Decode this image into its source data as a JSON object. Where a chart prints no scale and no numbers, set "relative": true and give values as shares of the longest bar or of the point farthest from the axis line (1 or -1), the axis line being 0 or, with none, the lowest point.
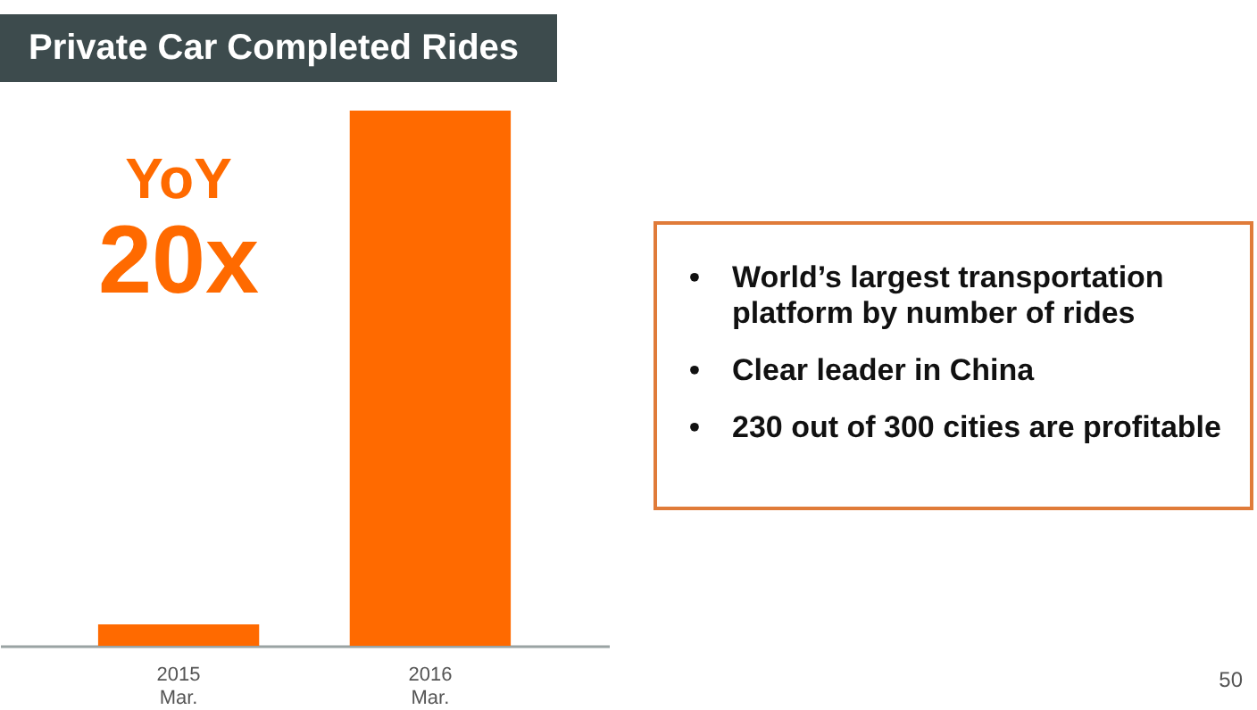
{
  "chart_data": {
    "type": "bar",
    "title": "Private Car Completed Rides",
    "categories": [
      "2015\nMar.",
      "2016\nMar."
    ],
    "values": [
      0.04,
      1
    ],
    "color": "#ff6a00",
    "relative": true,
    "annotations": [
      "YoY",
      "20x",
      "• World’s largest transportation platform by number of rides",
      "• Clear leader in China",
      "• 230 out of 300 cities are profitable",
      "50"
    ]
  }
}
